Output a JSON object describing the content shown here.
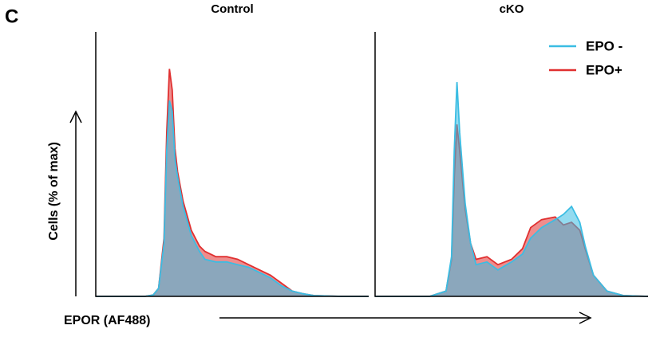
{
  "panel_label": "C",
  "y_label": "Cells (% of max)",
  "x_label": "EPOR (AF488)",
  "chart_data": [
    {
      "type": "area",
      "title": "Control",
      "xlim": [
        0,
        100
      ],
      "ylim": [
        0,
        100
      ],
      "x": [
        0,
        10,
        18,
        21,
        23,
        25,
        26,
        27,
        28,
        29,
        30,
        32,
        35,
        38,
        40,
        44,
        48,
        52,
        56,
        60,
        64,
        68,
        72,
        76,
        80,
        90,
        100
      ],
      "series": [
        {
          "color": "#e03030",
          "values": [
            0,
            0,
            0,
            0.5,
            3,
            22,
            62,
            86,
            78,
            56,
            47,
            36,
            25,
            19,
            17,
            15,
            15,
            14,
            12,
            10,
            8,
            5,
            2,
            1,
            0.3,
            0,
            0
          ]
        },
        {
          "color": "#3bbde3",
          "values": [
            0,
            0,
            0,
            0.5,
            3,
            20,
            55,
            74,
            70,
            52,
            45,
            34,
            23,
            17,
            14,
            13,
            13,
            12,
            11,
            9,
            7,
            4,
            2,
            1,
            0.3,
            0,
            0
          ]
        }
      ]
    },
    {
      "type": "area",
      "title": "cKO",
      "xlim": [
        0,
        100
      ],
      "ylim": [
        0,
        100
      ],
      "legend": "upper right",
      "x": [
        0,
        20,
        26,
        28,
        29,
        30,
        31,
        33,
        35,
        37,
        41,
        45,
        50,
        54,
        57,
        61,
        66,
        69,
        72,
        75,
        77,
        80,
        85,
        91,
        100
      ],
      "series": [
        {
          "name": "EPO+",
          "color": "#e03030",
          "values": [
            0,
            0,
            2,
            14,
            45,
            65,
            55,
            33,
            20,
            14,
            15,
            12,
            14,
            18,
            26,
            29,
            30,
            27,
            28,
            25,
            18,
            8,
            2,
            0.3,
            0
          ]
        },
        {
          "name": "EPO -",
          "color": "#3bbde3",
          "values": [
            0,
            0,
            2,
            15,
            55,
            81,
            62,
            35,
            20,
            12,
            13,
            10,
            13,
            16,
            22,
            26,
            29,
            31,
            34,
            28,
            19,
            8,
            2,
            0.3,
            0
          ]
        }
      ]
    }
  ]
}
